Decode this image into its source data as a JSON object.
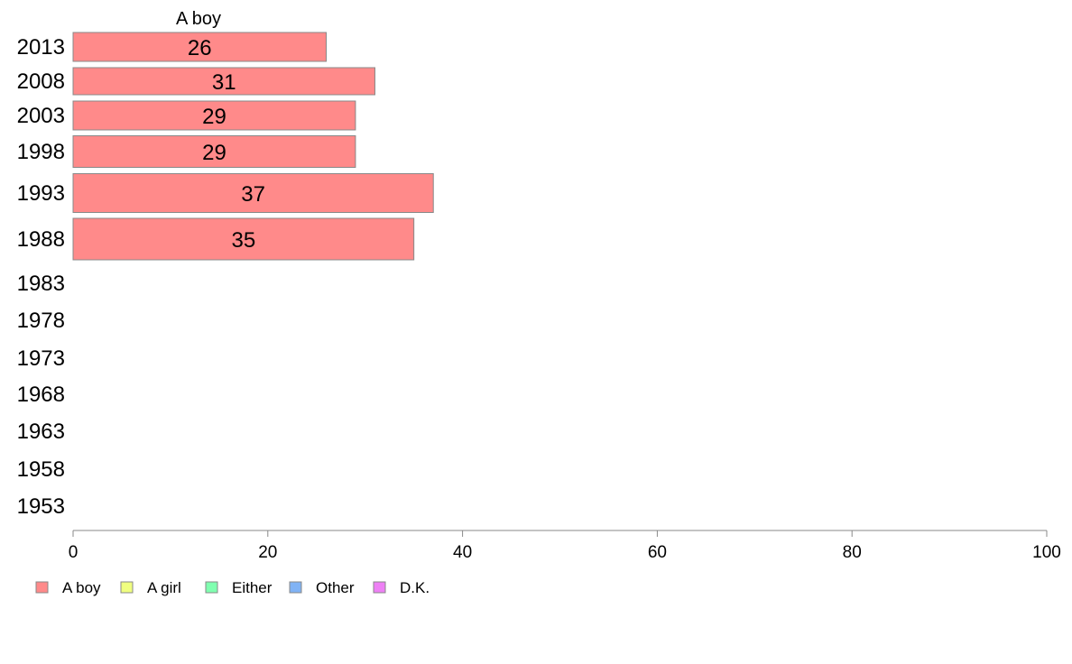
{
  "chart_data": {
    "type": "bar",
    "orientation": "horizontal",
    "stacked": true,
    "series_title": "A boy",
    "categories": [
      "2013",
      "2008",
      "2003",
      "1998",
      "1993",
      "1988",
      "1983",
      "1978",
      "1973",
      "1968",
      "1963",
      "1958",
      "1953"
    ],
    "series": [
      {
        "name": "A boy",
        "color": "#ff8a8a",
        "values": [
          26,
          31,
          29,
          29,
          37,
          35,
          null,
          null,
          null,
          null,
          null,
          null,
          null
        ]
      },
      {
        "name": "A girl",
        "color": "#f0ff80",
        "values": [
          null,
          null,
          null,
          null,
          null,
          null,
          null,
          null,
          null,
          null,
          null,
          null,
          null
        ]
      },
      {
        "name": "Either",
        "color": "#80ffb0",
        "values": [
          null,
          null,
          null,
          null,
          null,
          null,
          null,
          null,
          null,
          null,
          null,
          null,
          null
        ]
      },
      {
        "name": "Other",
        "color": "#80b3f5",
        "values": [
          null,
          null,
          null,
          null,
          null,
          null,
          null,
          null,
          null,
          null,
          null,
          null,
          null
        ]
      },
      {
        "name": "D.K.",
        "color": "#ee80f5",
        "values": [
          null,
          null,
          null,
          null,
          null,
          null,
          null,
          null,
          null,
          null,
          null,
          null,
          null
        ]
      }
    ],
    "xlim": [
      0,
      100
    ],
    "xticks": [
      0,
      20,
      40,
      60,
      80,
      100
    ],
    "grid": false,
    "legend_position": "bottom-left"
  }
}
